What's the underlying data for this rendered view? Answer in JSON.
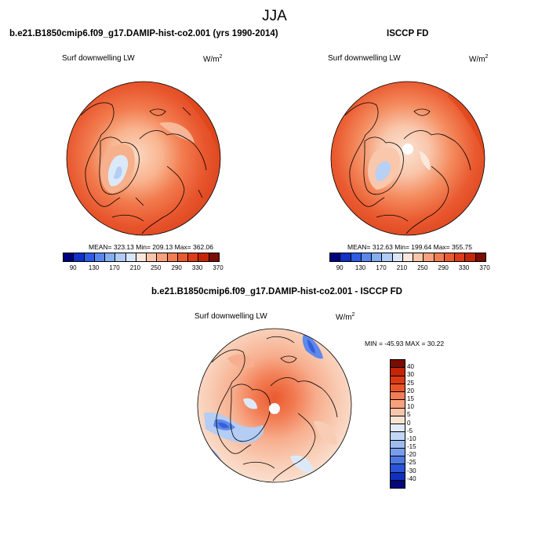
{
  "title": "JJA",
  "panels": [
    {
      "id": "model",
      "title": "b.e21.B1850cmip6.f09_g17.DAMIP-hist-co2.001 (yrs 1990-2014)",
      "variable": "Surf downwelling LW",
      "units_base": "W/m",
      "units_exp": "2",
      "stats": "MEAN= 323.13  Min= 209.13  Max= 362.06"
    },
    {
      "id": "obs",
      "title": "ISCCP FD",
      "variable": "Surf downwelling LW",
      "units_base": "W/m",
      "units_exp": "2",
      "stats": "MEAN= 312.63  Min= 199.64  Max= 355.75"
    },
    {
      "id": "diff",
      "title": "b.e21.B1850cmip6.f09_g17.DAMIP-hist-co2.001 - ISCCP FD",
      "variable": "Surf downwelling LW",
      "units_base": "W/m",
      "units_exp": "2",
      "stats": "MIN = -45.93  MAX =  30.22"
    }
  ],
  "colorbar_abs": {
    "labels": [
      "90",
      "130",
      "170",
      "210",
      "250",
      "290",
      "330",
      "370"
    ],
    "colors": [
      "#00007f",
      "#1030c8",
      "#2f5be6",
      "#5b86ee",
      "#86aef2",
      "#b0cbf5",
      "#d8e6f8",
      "#fbe7dc",
      "#f9c6ab",
      "#f7a27c",
      "#f27c53",
      "#ea5a30",
      "#de3b18",
      "#c52608",
      "#7a0c02"
    ]
  },
  "colorbar_diff": {
    "labels": [
      "40",
      "30",
      "25",
      "20",
      "15",
      "10",
      "5",
      "0",
      "-5",
      "-10",
      "-15",
      "-20",
      "-25",
      "-30",
      "-40"
    ],
    "colors": [
      "#7a0c02",
      "#d42a0a",
      "#ea4e22",
      "#f26d43",
      "#f48e68",
      "#f7ae8e",
      "#f9cdb5",
      "#fbe8dc",
      "#dde9f8",
      "#b4cdf4",
      "#8aadf0",
      "#5f88ea",
      "#3360e0",
      "#1432c0",
      "#000a7a"
    ]
  }
}
